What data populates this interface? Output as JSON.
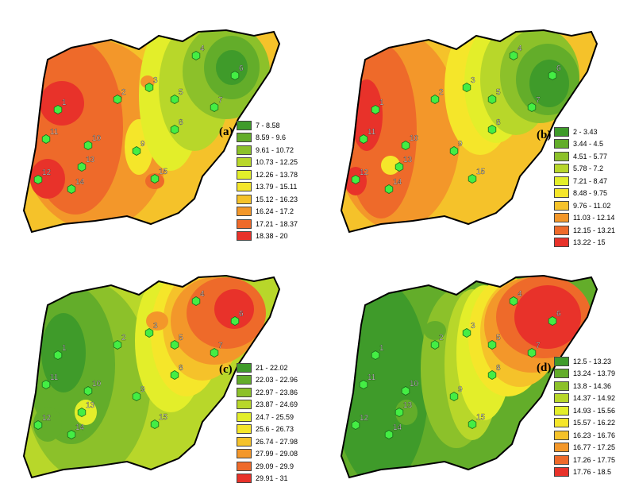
{
  "panels": [
    {
      "label": "(a)",
      "legend": [
        {
          "range": "7 - 8.58",
          "color": "#3f9b2a"
        },
        {
          "range": "8.59 - 9.6",
          "color": "#63ad2a"
        },
        {
          "range": "9.61 - 10.72",
          "color": "#8cc12a"
        },
        {
          "range": "10.73 - 12.25",
          "color": "#b8d72a"
        },
        {
          "range": "12.26 - 13.78",
          "color": "#e3ee2a"
        },
        {
          "range": "13.79 - 15.11",
          "color": "#f5e62a"
        },
        {
          "range": "15.12 - 16.23",
          "color": "#f5c22a"
        },
        {
          "range": "16.24 - 17.2",
          "color": "#f3972a"
        },
        {
          "range": "17.21 - 18.37",
          "color": "#ee6a2a"
        },
        {
          "range": "18.38 - 20",
          "color": "#e8322a"
        }
      ]
    },
    {
      "label": "(b)",
      "legend": [
        {
          "range": "2 - 3.43",
          "color": "#3f9b2a"
        },
        {
          "range": "3.44 - 4.5",
          "color": "#63ad2a"
        },
        {
          "range": "4.51 - 5.77",
          "color": "#8cc12a"
        },
        {
          "range": "5.78 - 7.2",
          "color": "#b8d72a"
        },
        {
          "range": "7.21 - 8.47",
          "color": "#e3ee2a"
        },
        {
          "range": "8.48 - 9.75",
          "color": "#f5e62a"
        },
        {
          "range": "9.76 - 11.02",
          "color": "#f5c22a"
        },
        {
          "range": "11.03 - 12.14",
          "color": "#f3972a"
        },
        {
          "range": "12.15 - 13.21",
          "color": "#ee6a2a"
        },
        {
          "range": "13.22 - 15",
          "color": "#e8322a"
        }
      ]
    },
    {
      "label": "(c)",
      "legend": [
        {
          "range": "21 - 22.02",
          "color": "#3f9b2a"
        },
        {
          "range": "22.03 - 22.96",
          "color": "#63ad2a"
        },
        {
          "range": "22.97 - 23.86",
          "color": "#8cc12a"
        },
        {
          "range": "23.87 - 24.69",
          "color": "#b8d72a"
        },
        {
          "range": "24.7 - 25.59",
          "color": "#e3ee2a"
        },
        {
          "range": "25.6 - 26.73",
          "color": "#f5e62a"
        },
        {
          "range": "26.74 - 27.98",
          "color": "#f5c22a"
        },
        {
          "range": "27.99 - 29.08",
          "color": "#f3972a"
        },
        {
          "range": "29.09 - 29.9",
          "color": "#ee6a2a"
        },
        {
          "range": "29.91 - 31",
          "color": "#e8322a"
        }
      ]
    },
    {
      "label": "(d)",
      "legend": [
        {
          "range": "12.5 - 13.23",
          "color": "#3f9b2a"
        },
        {
          "range": "13.24 - 13.79",
          "color": "#63ad2a"
        },
        {
          "range": "13.8 - 14.36",
          "color": "#8cc12a"
        },
        {
          "range": "14.37 - 14.92",
          "color": "#b8d72a"
        },
        {
          "range": "14.93 - 15.56",
          "color": "#e3ee2a"
        },
        {
          "range": "15.57 - 16.22",
          "color": "#f5e62a"
        },
        {
          "range": "16.23 - 16.76",
          "color": "#f5c22a"
        },
        {
          "range": "16.77 - 17.25",
          "color": "#f3972a"
        },
        {
          "range": "17.26 - 17.75",
          "color": "#ee6a2a"
        },
        {
          "range": "17.76 - 18.5",
          "color": "#e8322a"
        }
      ]
    }
  ],
  "stations": [
    "1",
    "2",
    "3",
    "4",
    "5",
    "6",
    "7",
    "8",
    "9",
    "10",
    "11",
    "12",
    "13",
    "14",
    "15"
  ],
  "station_color": "#44ee44"
}
